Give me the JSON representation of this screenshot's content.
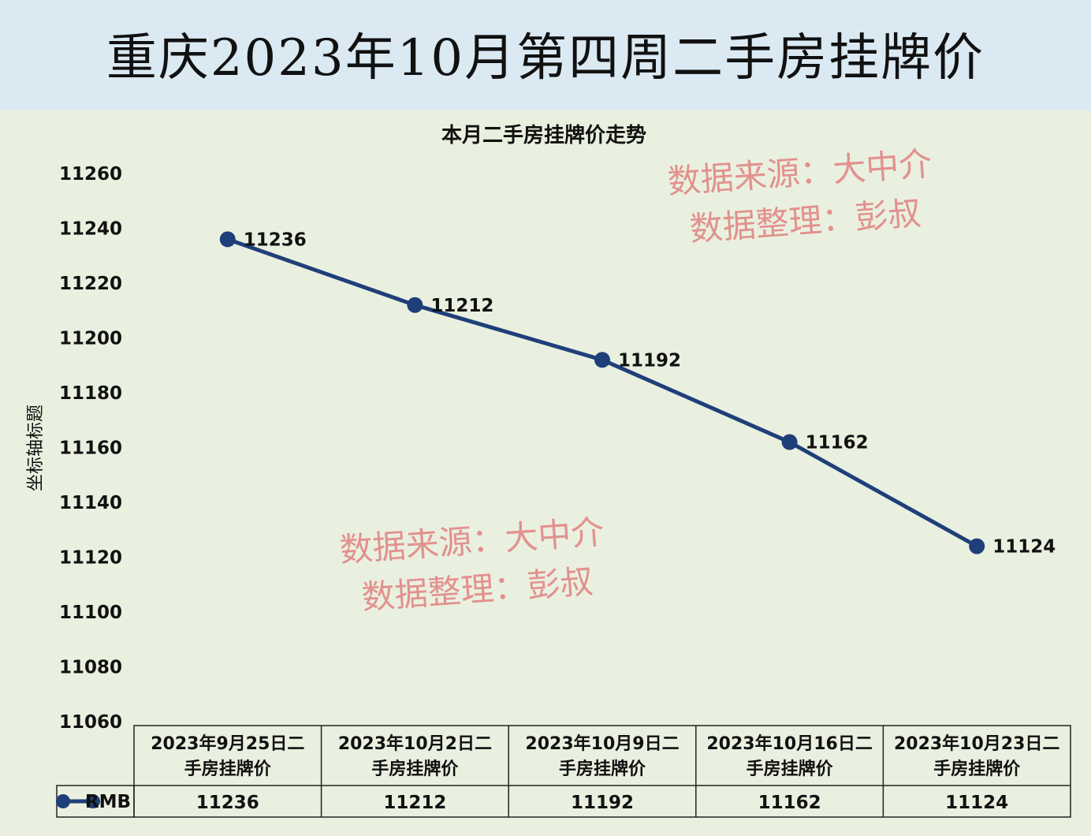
{
  "page_title": "重庆2023年10月第四周二手房挂牌价",
  "watermark": {
    "line1": "数据来源：大中介",
    "line2": "数据整理：彭叔"
  },
  "colors": {
    "banner_bg": "#dbe9f3",
    "plot_bg": "#eaf0df",
    "series_line": "#1f3f7a",
    "watermark": "#e08080"
  },
  "chart_data": {
    "type": "line",
    "title": "本月二手房挂牌价走势",
    "ylabel": "坐标轴标题",
    "xlabel": "",
    "ylim": [
      11060,
      11260
    ],
    "ytick_step": 20,
    "y_ticks": [
      "11260",
      "11240",
      "11220",
      "11200",
      "11180",
      "11160",
      "11140",
      "11120",
      "11100",
      "11080",
      "11060"
    ],
    "categories": [
      [
        "2023年9月25日二",
        "手房挂牌价"
      ],
      [
        "2023年10月2日二",
        "手房挂牌价"
      ],
      [
        "2023年10月9日二",
        "手房挂牌价"
      ],
      [
        "2023年10月16日二",
        "手房挂牌价"
      ],
      [
        "2023年10月23日二",
        "手房挂牌价"
      ]
    ],
    "series": [
      {
        "name": "RMB",
        "values": [
          11236,
          11212,
          11192,
          11162,
          11124
        ]
      }
    ],
    "data_labels": [
      "11236",
      "11212",
      "11192",
      "11162",
      "11124"
    ],
    "data_table": true,
    "grid": false,
    "legend": "in data table"
  }
}
